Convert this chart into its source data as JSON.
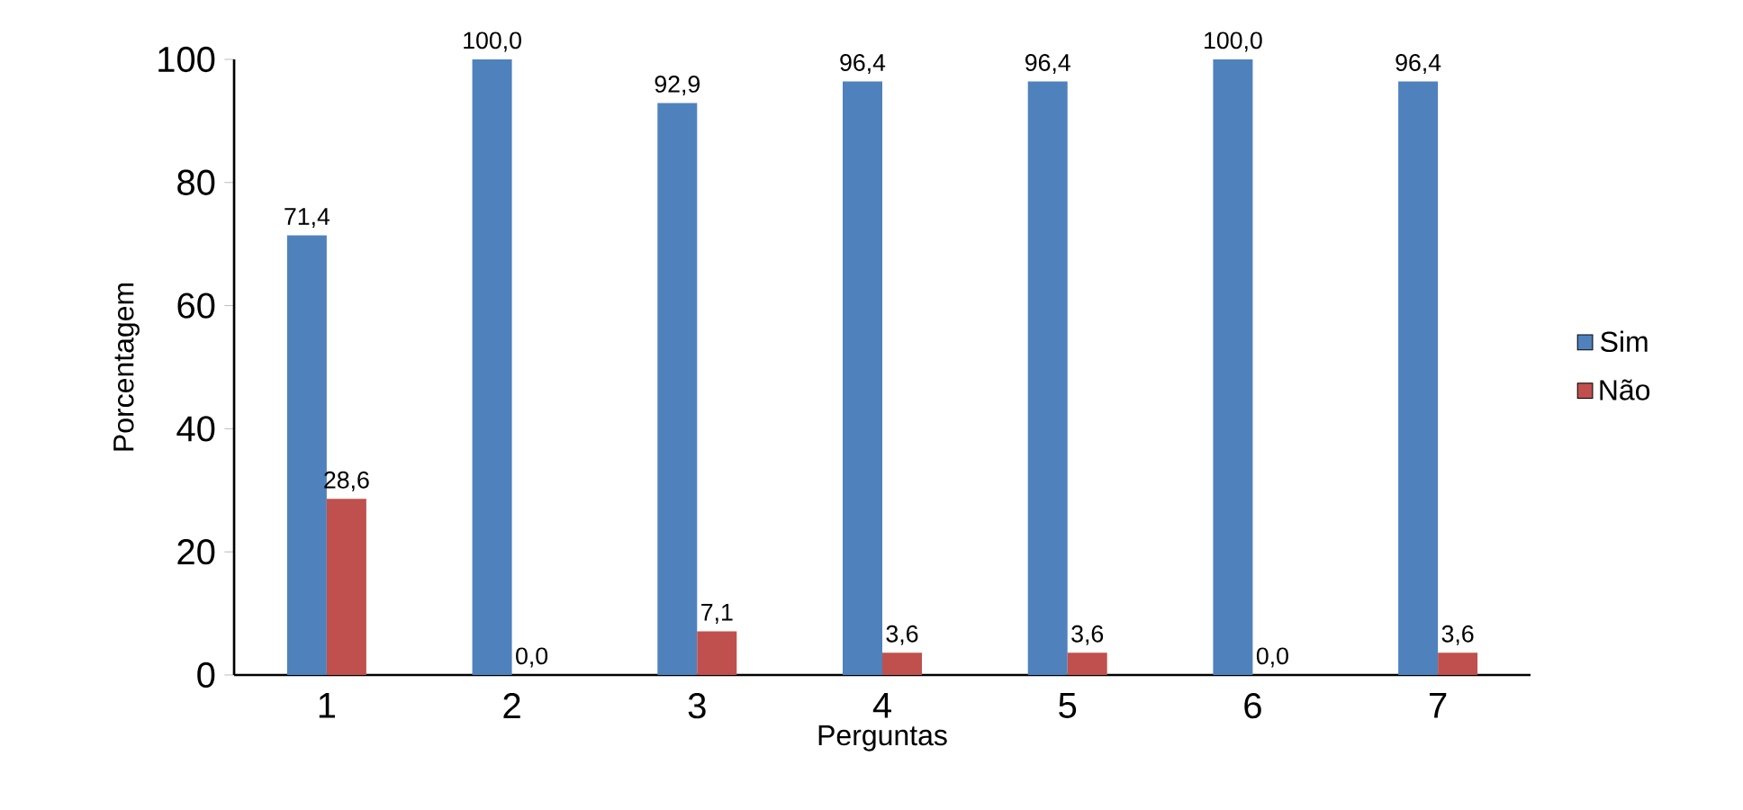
{
  "chart_data": {
    "type": "bar",
    "xlabel": "Perguntas",
    "ylabel": "Porcentagem",
    "categories": [
      "1",
      "2",
      "3",
      "4",
      "5",
      "6",
      "7"
    ],
    "series": [
      {
        "name": "Sim",
        "color": "#4f81bd",
        "values": [
          71.4,
          100.0,
          92.9,
          96.4,
          96.4,
          100.0,
          96.4
        ],
        "value_labels": [
          "71,4",
          "100,0",
          "92,9",
          "96,4",
          "96,4",
          "100,0",
          "96,4"
        ]
      },
      {
        "name": "Não",
        "color": "#c0504d",
        "values": [
          28.6,
          0.0,
          7.1,
          3.6,
          3.6,
          0.0,
          3.6
        ],
        "value_labels": [
          "28,6",
          "0,0",
          "7,1",
          "3,6",
          "3,6",
          "0,0",
          "3,6"
        ]
      }
    ],
    "ylim": [
      0,
      100
    ],
    "yticks": [
      0,
      20,
      40,
      60,
      80,
      100
    ],
    "grid": false,
    "legend": "right"
  }
}
